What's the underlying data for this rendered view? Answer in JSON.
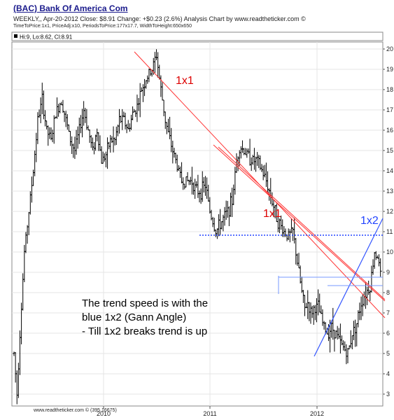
{
  "header": {
    "title": "(BAC) Bank Of America Com",
    "info_line": "WEEKLY,, Apr-20-2012  Close: $8.91  Change: +$0.23  (2.6%)  Analysis Chart by www.readtheticker.com ©",
    "info_line2": "TimeToPrice:1x1, PriceAdj:x10, PeriodsToPrice:177x17.7, WidthToHeight:650x650"
  },
  "chart_data": {
    "type": "ohlc",
    "ohlc_label": "Hi:9, Lo:8.62, Cl:8.91",
    "footer": "www.readtheticker.com © (395.16675)",
    "x_tick_labels": [
      "2010",
      "2011",
      "2012"
    ],
    "ylim": [
      2.5,
      20.3
    ],
    "y_ticks": [
      3,
      4,
      5,
      6,
      7,
      8,
      9,
      10,
      11,
      12,
      13,
      14,
      15,
      16,
      17,
      18,
      19,
      20
    ],
    "grid": true,
    "price_keypoints": [
      [
        0,
        5.0
      ],
      [
        4,
        3.0
      ],
      [
        8,
        6.0
      ],
      [
        14,
        10.0
      ],
      [
        20,
        12.0
      ],
      [
        26,
        14.0
      ],
      [
        32,
        16.5
      ],
      [
        38,
        17.5
      ],
      [
        44,
        16.0
      ],
      [
        50,
        15.5
      ],
      [
        56,
        16.8
      ],
      [
        64,
        17.5
      ],
      [
        70,
        16.5
      ],
      [
        76,
        15.5
      ],
      [
        82,
        15.0
      ],
      [
        88,
        16.0
      ],
      [
        94,
        17.0
      ],
      [
        100,
        16.0
      ],
      [
        106,
        15.0
      ],
      [
        112,
        16.0
      ],
      [
        118,
        14.5
      ],
      [
        124,
        14.8
      ],
      [
        130,
        15.5
      ],
      [
        136,
        15.5
      ],
      [
        142,
        16.5
      ],
      [
        148,
        16.5
      ],
      [
        154,
        16.0
      ],
      [
        160,
        16.8
      ],
      [
        166,
        17.2
      ],
      [
        172,
        18.0
      ],
      [
        178,
        18.5
      ],
      [
        186,
        19.0
      ],
      [
        192,
        19.7
      ],
      [
        198,
        18.0
      ],
      [
        204,
        16.5
      ],
      [
        210,
        15.5
      ],
      [
        218,
        14.5
      ],
      [
        226,
        13.5
      ],
      [
        234,
        13.5
      ],
      [
        240,
        13.5
      ],
      [
        246,
        13.0
      ],
      [
        252,
        13.0
      ],
      [
        258,
        13.3
      ],
      [
        264,
        12.0
      ],
      [
        272,
        11.0
      ],
      [
        280,
        11.5
      ],
      [
        288,
        12.0
      ],
      [
        294,
        12.5
      ],
      [
        300,
        14.5
      ],
      [
        304,
        15.2
      ],
      [
        310,
        15.0
      ],
      [
        316,
        14.7
      ],
      [
        322,
        14.5
      ],
      [
        328,
        14.5
      ],
      [
        334,
        14.0
      ],
      [
        340,
        13.5
      ],
      [
        348,
        12.5
      ],
      [
        356,
        11.5
      ],
      [
        364,
        11.0
      ],
      [
        370,
        10.8
      ],
      [
        376,
        11.0
      ],
      [
        380,
        10.0
      ],
      [
        384,
        9.0
      ],
      [
        388,
        8.0
      ],
      [
        392,
        7.2
      ],
      [
        396,
        7.5
      ],
      [
        400,
        7.0
      ],
      [
        404,
        7.2
      ],
      [
        410,
        7.3
      ],
      [
        416,
        6.5
      ],
      [
        422,
        6.0
      ],
      [
        428,
        6.3
      ],
      [
        434,
        6.0
      ],
      [
        440,
        5.5
      ],
      [
        446,
        5.2
      ],
      [
        450,
        5.0
      ],
      [
        456,
        6.0
      ],
      [
        462,
        6.5
      ],
      [
        468,
        7.5
      ],
      [
        474,
        8.0
      ],
      [
        480,
        8.3
      ],
      [
        486,
        10.0
      ],
      [
        490,
        9.8
      ],
      [
        494,
        8.9
      ]
    ],
    "annotations": {
      "gann_1x1_a": "1x1",
      "gann_1x1_b": "1x1",
      "gann_1x2": "1x2",
      "note_line1": "The trend speed is with the",
      "note_line2": "blue 1x2 (Gann Angle)",
      "note_line3": "- Till 1x2 breaks trend is up"
    },
    "colors": {
      "up_down_bars": "#000000",
      "gann_1x1": "#ff3333",
      "gann_1x2": "#3355ff",
      "support_line": "#2244ff",
      "grid": "#e4e4e4",
      "annotation_red": "#dd0000",
      "annotation_blue": "#2244ff"
    }
  }
}
